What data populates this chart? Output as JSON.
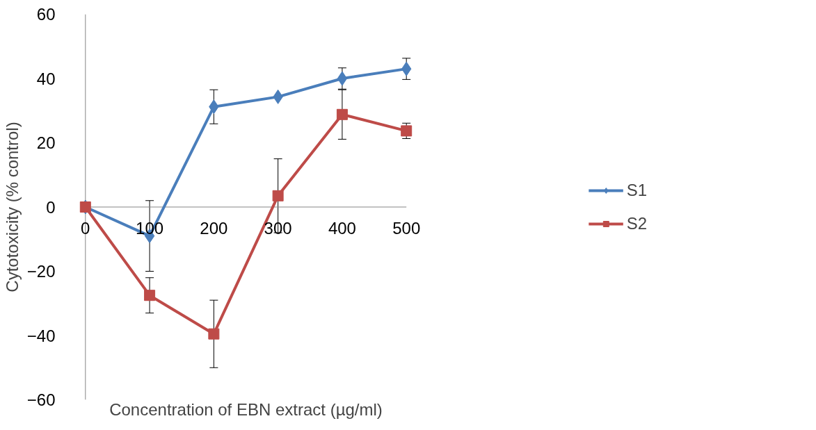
{
  "chart_data": {
    "type": "line",
    "xlabel": "Concentration of EBN extract (µg/ml)",
    "ylabel": "Cytotoxicity (% control)",
    "x": [
      0,
      100,
      200,
      300,
      400,
      500
    ],
    "xlim": [
      0,
      500
    ],
    "xticks": [
      0,
      100,
      200,
      300,
      400,
      500
    ],
    "ylim": [
      -60,
      60
    ],
    "yticks": [
      -60,
      -40,
      -20,
      0,
      20,
      40,
      60
    ],
    "grid": false,
    "legend": "right",
    "line_style": "solid",
    "series": [
      {
        "name": "S1",
        "color": "#4a7ebb",
        "marker": "diamond",
        "values": [
          0,
          -9,
          31.2,
          34.3,
          40,
          43
        ],
        "errors": [
          null,
          11,
          5.3,
          null,
          3.3,
          3.3
        ]
      },
      {
        "name": "S2",
        "color": "#be4b48",
        "marker": "square",
        "values": [
          0,
          -27.5,
          -39.5,
          3.5,
          28.8,
          23.7
        ],
        "errors": [
          null,
          5.5,
          10.5,
          11.5,
          7.7,
          2.4
        ]
      }
    ]
  }
}
